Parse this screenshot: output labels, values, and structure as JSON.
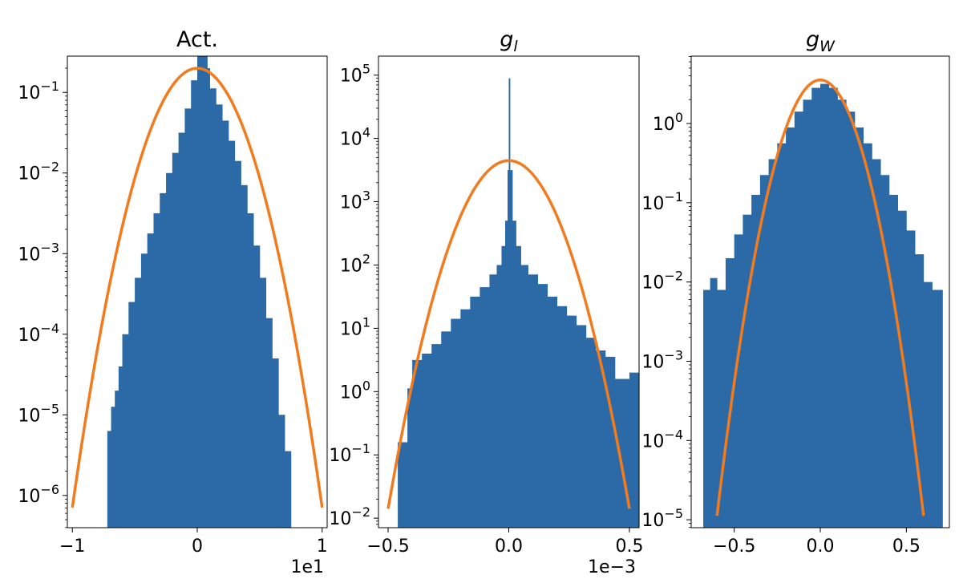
{
  "chart_data": [
    {
      "type": "histogram",
      "title": "Act.",
      "title_style": "plain",
      "yscale": "log",
      "xlim": [
        -1.04,
        1.04
      ],
      "ylim_exp": [
        -6.4,
        -0.55
      ],
      "xticks": [
        {
          "value": -1,
          "label": "−1"
        },
        {
          "value": 0,
          "label": "0"
        },
        {
          "value": 1,
          "label": "1"
        }
      ],
      "yticks": [
        {
          "exp": -6,
          "mant": "10",
          "sup": "−6"
        },
        {
          "exp": -5,
          "mant": "10",
          "sup": "−5"
        },
        {
          "exp": -4,
          "mant": "10",
          "sup": "−4"
        },
        {
          "exp": -3,
          "mant": "10",
          "sup": "−3"
        },
        {
          "exp": -2,
          "mant": "10",
          "sup": "−2"
        },
        {
          "exp": -1,
          "mant": "10",
          "sup": "−1"
        }
      ],
      "x_multiplier": "1e1",
      "histogram": [
        [
          -0.72,
          -5.2
        ],
        [
          -0.69,
          -4.9
        ],
        [
          -0.66,
          -4.7
        ],
        [
          -0.63,
          -4.4
        ],
        [
          -0.6,
          -4.0
        ],
        [
          -0.55,
          -3.6
        ],
        [
          -0.5,
          -3.3
        ],
        [
          -0.45,
          -3.0
        ],
        [
          -0.4,
          -2.75
        ],
        [
          -0.35,
          -2.5
        ],
        [
          -0.3,
          -2.25
        ],
        [
          -0.25,
          -2.0
        ],
        [
          -0.2,
          -1.75
        ],
        [
          -0.15,
          -1.5
        ],
        [
          -0.1,
          -1.2
        ],
        [
          -0.05,
          -0.85
        ],
        [
          0.0,
          -0.55
        ],
        [
          0.05,
          -0.52
        ],
        [
          0.08,
          -0.7
        ],
        [
          0.1,
          -0.95
        ],
        [
          0.15,
          -1.15
        ],
        [
          0.2,
          -1.35
        ],
        [
          0.25,
          -1.6
        ],
        [
          0.3,
          -1.85
        ],
        [
          0.35,
          -2.15
        ],
        [
          0.4,
          -2.5
        ],
        [
          0.45,
          -2.9
        ],
        [
          0.5,
          -3.3
        ],
        [
          0.55,
          -3.8
        ],
        [
          0.6,
          -4.3
        ],
        [
          0.65,
          -5.0
        ],
        [
          0.7,
          -5.45
        ]
      ],
      "series": [
        {
          "name": "histogram",
          "color": "#2b6aa6"
        },
        {
          "name": "gaussian fit",
          "color": "#f27b1e",
          "peak_x": 0.0,
          "peak_exp": -0.7,
          "edge_x": 1.0,
          "edge_exp": -6.15
        }
      ]
    },
    {
      "type": "histogram",
      "title": "g",
      "title_sub": "l",
      "title_style": "italic",
      "yscale": "log",
      "xlim": [
        -0.54,
        0.54
      ],
      "ylim_exp": [
        -2.15,
        5.3
      ],
      "xticks": [
        {
          "value": -0.5,
          "label": "−0.5"
        },
        {
          "value": 0,
          "label": "0.0"
        },
        {
          "value": 0.5,
          "label": "0.5"
        }
      ],
      "yticks": [
        {
          "exp": -2,
          "mant": "10",
          "sup": "−2"
        },
        {
          "exp": -1,
          "mant": "10",
          "sup": "−1"
        },
        {
          "exp": 0,
          "mant": "10",
          "sup": "0"
        },
        {
          "exp": 1,
          "mant": "10",
          "sup": "1"
        },
        {
          "exp": 2,
          "mant": "10",
          "sup": "2"
        },
        {
          "exp": 3,
          "mant": "10",
          "sup": "3"
        },
        {
          "exp": 4,
          "mant": "10",
          "sup": "4"
        },
        {
          "exp": 5,
          "mant": "10",
          "sup": "5"
        }
      ],
      "x_multiplier": "1e−3",
      "histogram": [
        [
          -0.46,
          -0.8
        ],
        [
          -0.42,
          0.05
        ],
        [
          -0.4,
          0.5
        ],
        [
          -0.36,
          0.6
        ],
        [
          -0.32,
          0.75
        ],
        [
          -0.28,
          0.95
        ],
        [
          -0.24,
          1.15
        ],
        [
          -0.2,
          1.3
        ],
        [
          -0.16,
          1.5
        ],
        [
          -0.12,
          1.65
        ],
        [
          -0.08,
          1.85
        ],
        [
          -0.05,
          2.0
        ],
        [
          -0.03,
          2.3
        ],
        [
          -0.015,
          2.7
        ],
        [
          -0.005,
          3.5
        ],
        [
          0.0,
          4.95
        ],
        [
          0.005,
          3.5
        ],
        [
          0.015,
          2.7
        ],
        [
          0.03,
          2.3
        ],
        [
          0.05,
          2.0
        ],
        [
          0.08,
          1.85
        ],
        [
          0.12,
          1.7
        ],
        [
          0.16,
          1.5
        ],
        [
          0.2,
          1.35
        ],
        [
          0.24,
          1.2
        ],
        [
          0.28,
          1.05
        ],
        [
          0.32,
          0.85
        ],
        [
          0.36,
          0.65
        ],
        [
          0.4,
          0.55
        ],
        [
          0.44,
          0.2
        ],
        [
          0.5,
          0.3
        ]
      ],
      "series": [
        {
          "name": "histogram",
          "color": "#2b6aa6"
        },
        {
          "name": "gaussian fit",
          "color": "#f27b1e",
          "peak_x": 0.0,
          "peak_exp": 3.65,
          "edge_x": 0.5,
          "edge_exp": -1.85
        }
      ]
    },
    {
      "type": "histogram",
      "title": "g",
      "title_sub": "W",
      "title_style": "italic",
      "yscale": "log",
      "xlim": [
        -0.75,
        0.75
      ],
      "ylim_exp": [
        -5.1,
        0.85
      ],
      "xticks": [
        {
          "value": -0.5,
          "label": "−0.5"
        },
        {
          "value": 0,
          "label": "0.0"
        },
        {
          "value": 0.5,
          "label": "0.5"
        }
      ],
      "yticks": [
        {
          "exp": -5,
          "mant": "10",
          "sup": "−5"
        },
        {
          "exp": -4,
          "mant": "10",
          "sup": "−4"
        },
        {
          "exp": -3,
          "mant": "10",
          "sup": "−3"
        },
        {
          "exp": -2,
          "mant": "10",
          "sup": "−2"
        },
        {
          "exp": -1,
          "mant": "10",
          "sup": "−1"
        },
        {
          "exp": 0,
          "mant": "10",
          "sup": "0"
        }
      ],
      "x_multiplier": "",
      "histogram": [
        [
          -0.68,
          -2.1
        ],
        [
          -0.64,
          -1.95
        ],
        [
          -0.6,
          -2.1
        ],
        [
          -0.55,
          -1.7
        ],
        [
          -0.5,
          -1.4
        ],
        [
          -0.45,
          -1.15
        ],
        [
          -0.4,
          -0.9
        ],
        [
          -0.35,
          -0.65
        ],
        [
          -0.3,
          -0.45
        ],
        [
          -0.25,
          -0.25
        ],
        [
          -0.2,
          -0.05
        ],
        [
          -0.15,
          0.15
        ],
        [
          -0.1,
          0.3
        ],
        [
          -0.05,
          0.45
        ],
        [
          0.0,
          0.5
        ],
        [
          0.05,
          0.45
        ],
        [
          0.1,
          0.3
        ],
        [
          0.15,
          0.15
        ],
        [
          0.2,
          -0.05
        ],
        [
          0.25,
          -0.25
        ],
        [
          0.3,
          -0.45
        ],
        [
          0.35,
          -0.65
        ],
        [
          0.4,
          -0.9
        ],
        [
          0.45,
          -1.1
        ],
        [
          0.5,
          -1.35
        ],
        [
          0.55,
          -1.65
        ],
        [
          0.6,
          -2.0
        ],
        [
          0.65,
          -2.1
        ],
        [
          0.68,
          -2.1
        ]
      ],
      "series": [
        {
          "name": "histogram",
          "color": "#2b6aa6"
        },
        {
          "name": "gaussian fit",
          "color": "#f27b1e",
          "peak_x": 0.0,
          "peak_exp": 0.55,
          "edge_x": 0.6,
          "edge_exp": -4.95
        }
      ]
    }
  ]
}
